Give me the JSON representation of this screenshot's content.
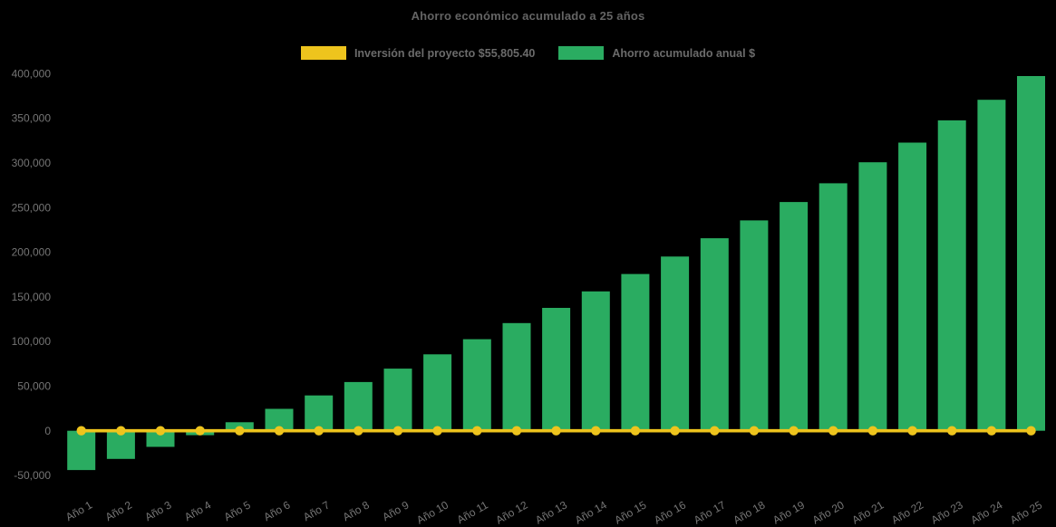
{
  "chart_data": {
    "type": "bar",
    "title": "Ahorro económico acumulado a 25 años",
    "categories": [
      "Año 1",
      "Año 2",
      "Año 3",
      "Año 4",
      "Año 5",
      "Año 6",
      "Año 7",
      "Año 8",
      "Año 9",
      "Año 10",
      "Año 11",
      "Año 12",
      "Año 13",
      "Año 14",
      "Año 15",
      "Año 16",
      "Año 17",
      "Año 18",
      "Año 19",
      "Año 20",
      "Año 21",
      "Año 22",
      "Año 23",
      "Año 24",
      "Año 25"
    ],
    "series": [
      {
        "name": "Inversión del proyecto $55,805.40",
        "type": "line",
        "color": "#eec41d",
        "values": [
          0,
          0,
          0,
          0,
          0,
          0,
          0,
          0,
          0,
          0,
          0,
          0,
          0,
          0,
          0,
          0,
          0,
          0,
          0,
          0,
          0,
          0,
          0,
          0,
          0
        ]
      },
      {
        "name": "Ahorro acumulado anual $",
        "type": "bar",
        "color": "#2aac61",
        "values": [
          -44000,
          -31500,
          -18000,
          -5000,
          9500,
          24500,
          39500,
          54500,
          69500,
          85500,
          102500,
          120500,
          137500,
          156000,
          175500,
          195000,
          215500,
          235500,
          256000,
          277000,
          300500,
          322500,
          347500,
          370500,
          397000
        ]
      }
    ],
    "xlabel": "",
    "ylabel": "",
    "ylim": [
      -50000,
      400000
    ],
    "ytick_step": 50000,
    "ytick_labels": [
      "-50,000",
      "0",
      "50,000",
      "100,000",
      "150,000",
      "200,000",
      "250,000",
      "300,000",
      "350,000",
      "400,000"
    ],
    "legend_position": "top",
    "grid": false,
    "background": "#000000",
    "axis_text_color": "#757575"
  }
}
